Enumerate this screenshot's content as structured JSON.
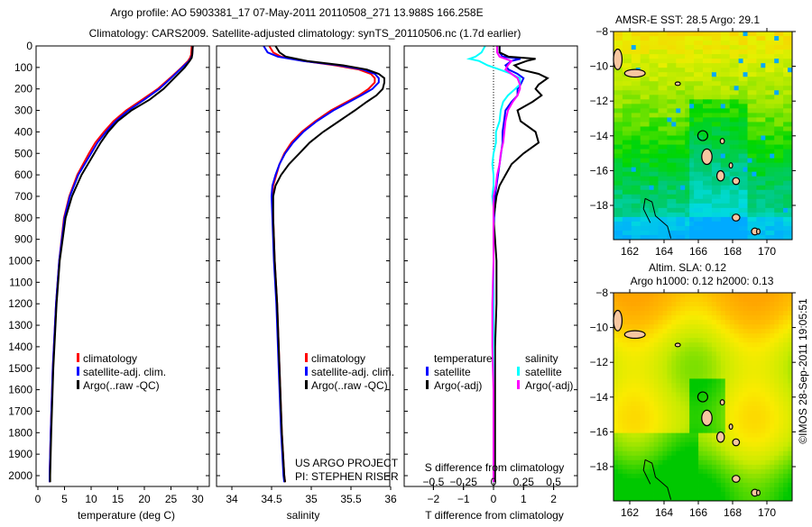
{
  "title_line1": "Argo profile: AO 5903381_17 07-May-2011 20110508_271 13.988S 166.258E",
  "title_line2": "Climatology: CARS2009. Satellite-adjusted climatology: synTS_20110506.nc (1.7d earlier)",
  "side_stamp": "©IMOS 28-Sep-2011 19:05:51",
  "colors": {
    "climatology": "#ff0000",
    "satellite": "#0000ff",
    "argo": "#000000",
    "sal_satellite": "#00ffff",
    "sal_argo": "#ff00ff",
    "land": "#f7c6a0"
  },
  "chart_data": [
    {
      "type": "line",
      "name": "temperature-profile",
      "xlabel": "temperature (deg C)",
      "ylabel": "",
      "xlim": [
        0,
        31
      ],
      "ylim": [
        2046,
        0
      ],
      "xticks": [
        "0",
        "5",
        "10",
        "15",
        "20",
        "25",
        "30"
      ],
      "yticks": [
        "0",
        "100",
        "200",
        "300",
        "400",
        "500",
        "600",
        "700",
        "800",
        "900",
        "1000",
        "1100",
        "1200",
        "1300",
        "1400",
        "1500",
        "1600",
        "1700",
        "1800",
        "1900",
        "2000"
      ],
      "depth": [
        0,
        40,
        55,
        70,
        100,
        150,
        200,
        250,
        300,
        350,
        400,
        450,
        500,
        600,
        700,
        800,
        1000,
        1200,
        1500,
        1800,
        2000,
        2030
      ],
      "series": [
        {
          "name": "climatology",
          "values": [
            28.9,
            28.8,
            28.6,
            28.2,
            27.0,
            24.8,
            22.5,
            19.6,
            16.6,
            14.2,
            12.4,
            10.8,
            9.6,
            7.4,
            5.9,
            4.9,
            4.0,
            3.4,
            2.8,
            2.4,
            2.2,
            2.2
          ]
        },
        {
          "name": "satellite-adj. clim.",
          "values": [
            29.1,
            29.0,
            28.8,
            28.4,
            27.1,
            25.0,
            22.8,
            20.0,
            17.0,
            14.6,
            12.8,
            11.2,
            10.0,
            7.6,
            6.0,
            5.0,
            4.0,
            3.4,
            2.8,
            2.4,
            2.2,
            2.2
          ]
        },
        {
          "name": "Argo(..raw -QC)",
          "values": [
            29.1,
            29.0,
            28.9,
            28.5,
            27.6,
            25.6,
            23.6,
            21.0,
            17.6,
            15.0,
            13.2,
            11.8,
            10.6,
            8.2,
            6.4,
            5.2,
            4.1,
            3.5,
            2.9,
            2.5,
            2.3,
            2.3
          ]
        }
      ],
      "legend": [
        "climatology",
        "satellite-adj. clim.",
        "Argo(..raw -QC)"
      ],
      "legend_placement": "lower-center"
    },
    {
      "type": "line",
      "name": "salinity-profile",
      "xlabel": "salinity",
      "xlim": [
        33.8,
        36.1
      ],
      "ylim": [
        2046,
        0
      ],
      "xticks": [
        "34",
        "34.5",
        "35",
        "35.5",
        "36"
      ],
      "depth": [
        0,
        30,
        50,
        70,
        90,
        110,
        130,
        150,
        170,
        200,
        230,
        260,
        300,
        350,
        400,
        450,
        500,
        550,
        600,
        650,
        700,
        800,
        1000,
        1200,
        1500,
        1800,
        2000,
        2030
      ],
      "series": [
        {
          "name": "climatology",
          "values": [
            34.47,
            34.52,
            34.62,
            34.9,
            35.3,
            35.6,
            35.75,
            35.8,
            35.8,
            35.72,
            35.6,
            35.45,
            35.25,
            35.05,
            34.88,
            34.75,
            34.66,
            34.6,
            34.56,
            34.52,
            34.51,
            34.52,
            34.54,
            34.57,
            34.6,
            34.63,
            34.66,
            34.67
          ]
        },
        {
          "name": "satellite-adj. clim.",
          "values": [
            34.4,
            34.45,
            34.58,
            34.9,
            35.35,
            35.65,
            35.8,
            35.85,
            35.85,
            35.77,
            35.63,
            35.48,
            35.28,
            35.07,
            34.9,
            34.77,
            34.67,
            34.6,
            34.55,
            34.51,
            34.5,
            34.51,
            34.53,
            34.56,
            34.59,
            34.62,
            34.65,
            34.66
          ]
        },
        {
          "name": "Argo(..raw -QC)",
          "values": [
            34.55,
            34.6,
            34.68,
            34.95,
            35.4,
            35.7,
            35.85,
            35.92,
            35.92,
            35.9,
            35.82,
            35.7,
            35.55,
            35.35,
            35.15,
            34.98,
            34.85,
            34.72,
            34.62,
            34.55,
            34.52,
            34.52,
            34.54,
            34.57,
            34.6,
            34.63,
            34.66,
            34.67
          ]
        }
      ],
      "legend": [
        "climatology",
        "satellite-adj. clim.",
        "Argo(..raw -QC)"
      ],
      "annotation": [
        "US ARGO PROJECT",
        "PI: STEPHEN RISER"
      ]
    },
    {
      "type": "line",
      "name": "difference-profile",
      "xlabel": "T difference from climatology",
      "x2label": "S difference from climatology",
      "xlim": [
        -2.9,
        2.9
      ],
      "x2lim": [
        -0.72,
        0.72
      ],
      "xticks": [
        "-2",
        "-1",
        "0",
        "1",
        "2"
      ],
      "x2ticks": [
        "-0.5",
        "-0.25",
        "0",
        "0.25",
        "0.5"
      ],
      "depth": [
        0,
        30,
        50,
        60,
        70,
        90,
        110,
        130,
        150,
        180,
        200,
        230,
        260,
        300,
        350,
        400,
        450,
        500,
        550,
        600,
        650,
        700,
        750,
        800,
        900,
        1000,
        1200,
        1400,
        1600,
        1800,
        2000,
        2030
      ],
      "series": [
        {
          "name": "temperature satellite",
          "axis": "T",
          "values": [
            0.2,
            0.2,
            0.3,
            0.9,
            0.6,
            0.4,
            0.5,
            0.8,
            1.0,
            0.9,
            0.8,
            0.8,
            0.6,
            0.4,
            0.35,
            0.3,
            0.3,
            0.25,
            0.2,
            0.15,
            0.1,
            0.05,
            0.05,
            0.02,
            0.0,
            0.0,
            0.0,
            0.0,
            0.0,
            0.0,
            0.0,
            0.0
          ]
        },
        {
          "name": "temperature Argo(-adj)",
          "axis": "T",
          "values": [
            0.2,
            0.2,
            0.5,
            1.4,
            1.1,
            0.7,
            0.9,
            1.5,
            1.8,
            1.5,
            1.4,
            1.6,
            1.3,
            0.8,
            0.9,
            1.4,
            1.5,
            1.0,
            0.6,
            0.4,
            0.2,
            0.1,
            0.05,
            0.0,
            0.05,
            0.1,
            0.1,
            0.05,
            0.05,
            0.05,
            0.05,
            0.05
          ]
        },
        {
          "name": "salinity satellite",
          "axis": "S",
          "values": [
            -0.07,
            -0.1,
            -0.15,
            -0.2,
            -0.12,
            -0.05,
            0.05,
            0.15,
            0.22,
            0.22,
            0.18,
            0.12,
            0.08,
            0.06,
            0.05,
            0.02,
            0.02,
            0.0,
            -0.01,
            0.0,
            0.0,
            -0.01,
            0.0,
            0.0,
            0.0,
            0.0,
            0.0,
            0.0,
            0.0,
            0.0,
            0.0,
            0.0
          ]
        },
        {
          "name": "salinity Argo(-adj)",
          "axis": "S",
          "values": [
            0.03,
            0.03,
            0.05,
            0.1,
            0.15,
            0.12,
            0.1,
            0.15,
            0.2,
            0.22,
            0.22,
            0.2,
            0.16,
            0.12,
            0.1,
            0.09,
            0.08,
            0.06,
            0.05,
            0.03,
            0.02,
            0.0,
            0.0,
            0.0,
            0.0,
            0.0,
            -0.01,
            -0.01,
            0.0,
            0.0,
            0.0,
            0.0
          ]
        }
      ],
      "legend": {
        "temperature_title": "temperature",
        "salinity_title": "salinity",
        "t_sat": "satellite",
        "t_argo": "Argo(-adj)",
        "s_sat": "satellite",
        "s_argo": "Argo(-adj)"
      }
    },
    {
      "type": "heatmap",
      "name": "sst-map",
      "title": "AMSR-E SST: 28.5 Argo: 29.1",
      "xlim": [
        161.1,
        171.5
      ],
      "ylim": [
        -19.9,
        -8
      ],
      "xticks": [
        "162",
        "164",
        "166",
        "168",
        "170"
      ],
      "yticks": [
        "-8",
        "-10",
        "-12",
        "-14",
        "-16",
        "-18"
      ],
      "argo_position": {
        "lon": 166.258,
        "lat": -13.988
      }
    },
    {
      "type": "heatmap",
      "name": "sla-map",
      "title_line1": "Altim. SLA: 0.12",
      "title_line2": "Argo h1000: 0.12 h2000: 0.13",
      "xlim": [
        161.1,
        171.5
      ],
      "ylim": [
        -19.9,
        -8
      ],
      "xticks": [
        "162",
        "164",
        "166",
        "168",
        "170"
      ],
      "yticks": [
        "-8",
        "-10",
        "-12",
        "-14",
        "-16",
        "-18"
      ],
      "argo_position": {
        "lon": 166.258,
        "lat": -13.988
      }
    }
  ]
}
